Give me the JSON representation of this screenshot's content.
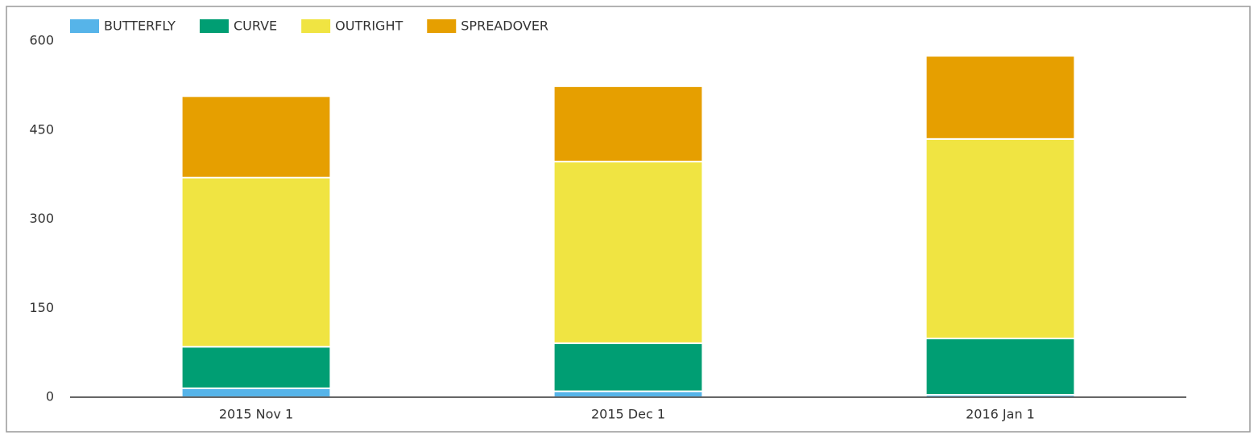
{
  "chart_data": {
    "type": "stacked_bar",
    "categories": [
      "2015 Nov 1",
      "2015 Dec 1",
      "2016 Jan 1"
    ],
    "series": [
      {
        "name": "BUTTERFLY",
        "color": "#56b4e9",
        "values": [
          15,
          10,
          4
        ]
      },
      {
        "name": "CURVE",
        "color": "#009e73",
        "values": [
          70,
          81,
          95
        ]
      },
      {
        "name": "OUTRIGHT",
        "color": "#f0e442",
        "values": [
          285,
          306,
          336
        ]
      },
      {
        "name": "SPREADOVER",
        "color": "#e69f00",
        "values": [
          137,
          127,
          140
        ]
      }
    ],
    "ylim": [
      0,
      600
    ],
    "yticks": [
      0,
      150,
      300,
      450,
      600
    ],
    "grid": false,
    "legend": "top-left"
  }
}
